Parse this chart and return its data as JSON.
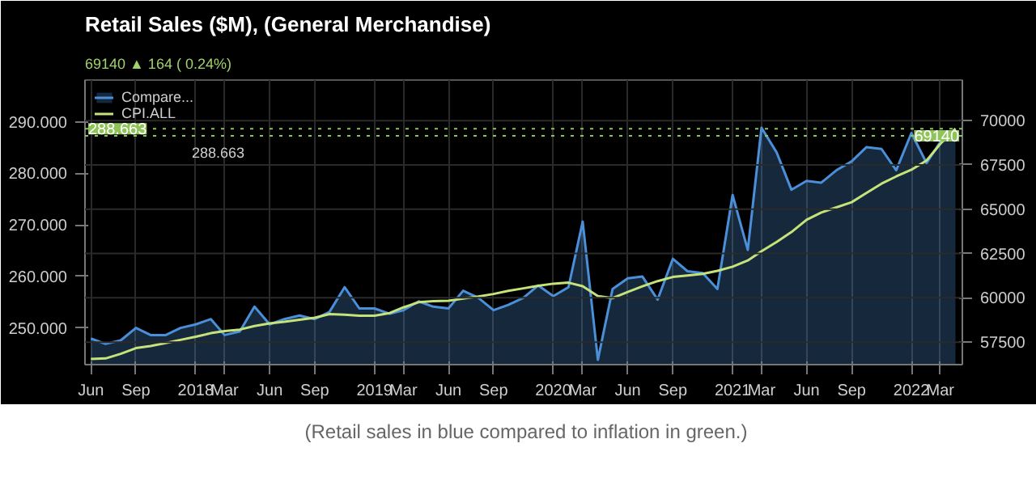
{
  "chart_data": {
    "type": "line",
    "title": "Retail Sales ($M), (General Merchandise)",
    "subtitle": "69140 ▲ 164 ( 0.24%)",
    "x": [
      "2017-06",
      "2017-07",
      "2017-08",
      "2017-09",
      "2017-10",
      "2017-11",
      "2017-12",
      "2018-01",
      "2018-02",
      "2018-03",
      "2018-04",
      "2018-05",
      "2018-06",
      "2018-07",
      "2018-08",
      "2018-09",
      "2018-10",
      "2018-11",
      "2018-12",
      "2019-01",
      "2019-02",
      "2019-03",
      "2019-04",
      "2019-05",
      "2019-06",
      "2019-07",
      "2019-08",
      "2019-09",
      "2019-10",
      "2019-11",
      "2019-12",
      "2020-01",
      "2020-02",
      "2020-03",
      "2020-04",
      "2020-05",
      "2020-06",
      "2020-07",
      "2020-08",
      "2020-09",
      "2020-10",
      "2020-11",
      "2020-12",
      "2021-01",
      "2021-02",
      "2021-03",
      "2021-04",
      "2021-05",
      "2021-06",
      "2021-07",
      "2021-08",
      "2021-09",
      "2021-10",
      "2021-11",
      "2021-12",
      "2022-01",
      "2022-02",
      "2022-03",
      "2022-04"
    ],
    "series": [
      {
        "name": "Compare...",
        "type": "area",
        "axis": "y2",
        "color": "#4a8fd8",
        "values": [
          57700,
          57400,
          57600,
          58300,
          57900,
          57900,
          58300,
          58500,
          58800,
          57900,
          58100,
          59500,
          58500,
          58800,
          59000,
          58800,
          59200,
          60600,
          59400,
          59400,
          59100,
          59300,
          59800,
          59500,
          59400,
          60400,
          60000,
          59300,
          59600,
          60000,
          60700,
          60100,
          60600,
          64300,
          56500,
          60500,
          61100,
          61200,
          59900,
          62200,
          61500,
          61400,
          60500,
          65800,
          62700,
          69600,
          68200,
          66100,
          66600,
          66500,
          67200,
          67700,
          68500,
          68400,
          67200,
          69300,
          67600,
          68800,
          69100
        ]
      },
      {
        "name": "CPI.ALL",
        "axis": "y",
        "color": "#c5e37a",
        "values": [
          244.0,
          244.1,
          245.0,
          246.1,
          246.5,
          247.1,
          247.7,
          248.3,
          249.0,
          249.4,
          249.7,
          250.4,
          250.9,
          251.2,
          251.6,
          252.0,
          252.7,
          252.6,
          252.4,
          252.4,
          252.9,
          254.0,
          255.0,
          255.2,
          255.3,
          255.7,
          256.1,
          256.6,
          257.2,
          257.7,
          258.2,
          258.6,
          258.8,
          258.1,
          256.2,
          255.8,
          257.0,
          258.1,
          259.1,
          259.9,
          260.2,
          260.5,
          261.1,
          261.9,
          263.1,
          264.9,
          266.7,
          268.6,
          271.0,
          272.4,
          273.4,
          274.4,
          276.2,
          278.0,
          279.4,
          280.7,
          282.5,
          285.7,
          288.7
        ]
      }
    ],
    "xlim": [
      "2017-05-20",
      "2022-04-15"
    ],
    "xticks": [
      {
        "value": "2017-06",
        "label": "Jun"
      },
      {
        "value": "2017-09",
        "label": "Sep"
      },
      {
        "value": "2018-01",
        "label": "2018"
      },
      {
        "value": "2018-03",
        "label": "Mar"
      },
      {
        "value": "2018-06",
        "label": "Jun"
      },
      {
        "value": "2018-09",
        "label": "Sep"
      },
      {
        "value": "2019-01",
        "label": "2019"
      },
      {
        "value": "2019-03",
        "label": "Mar"
      },
      {
        "value": "2019-06",
        "label": "Jun"
      },
      {
        "value": "2019-09",
        "label": "Sep"
      },
      {
        "value": "2020-01",
        "label": "2020"
      },
      {
        "value": "2020-03",
        "label": "Mar"
      },
      {
        "value": "2020-06",
        "label": "Jun"
      },
      {
        "value": "2020-09",
        "label": "Sep"
      },
      {
        "value": "2021-01",
        "label": "2021"
      },
      {
        "value": "2021-03",
        "label": "Mar"
      },
      {
        "value": "2021-06",
        "label": "Jun"
      },
      {
        "value": "2021-09",
        "label": "Sep"
      },
      {
        "value": "2022-01",
        "label": "2022"
      },
      {
        "value": "2022-03",
        "label": "Mar"
      }
    ],
    "ylim": [
      242.9,
      298.1
    ],
    "yticks": [
      {
        "value": 250,
        "label": "250.000"
      },
      {
        "value": 260,
        "label": "260.000"
      },
      {
        "value": 270,
        "label": "270.000"
      },
      {
        "value": 280,
        "label": "280.000"
      },
      {
        "value": 290,
        "label": "290.000"
      }
    ],
    "y2lim": [
      56230,
      72290
    ],
    "y2ticks": [
      57500,
      60000,
      62500,
      65000,
      67500,
      70000
    ],
    "ref_lines": [
      {
        "axis": "y",
        "value": 288.663,
        "label": "288.663",
        "color": "#8fc45a",
        "line_style": "dotted"
      },
      {
        "axis": "y2",
        "value": 69140,
        "label": "69140",
        "color": "#8fc45a",
        "line_style": "dotted"
      }
    ],
    "annotations": [
      "288.663",
      "(Retail sales in blue compared to inflation in green.)"
    ],
    "grid": true,
    "legend": "top left"
  }
}
